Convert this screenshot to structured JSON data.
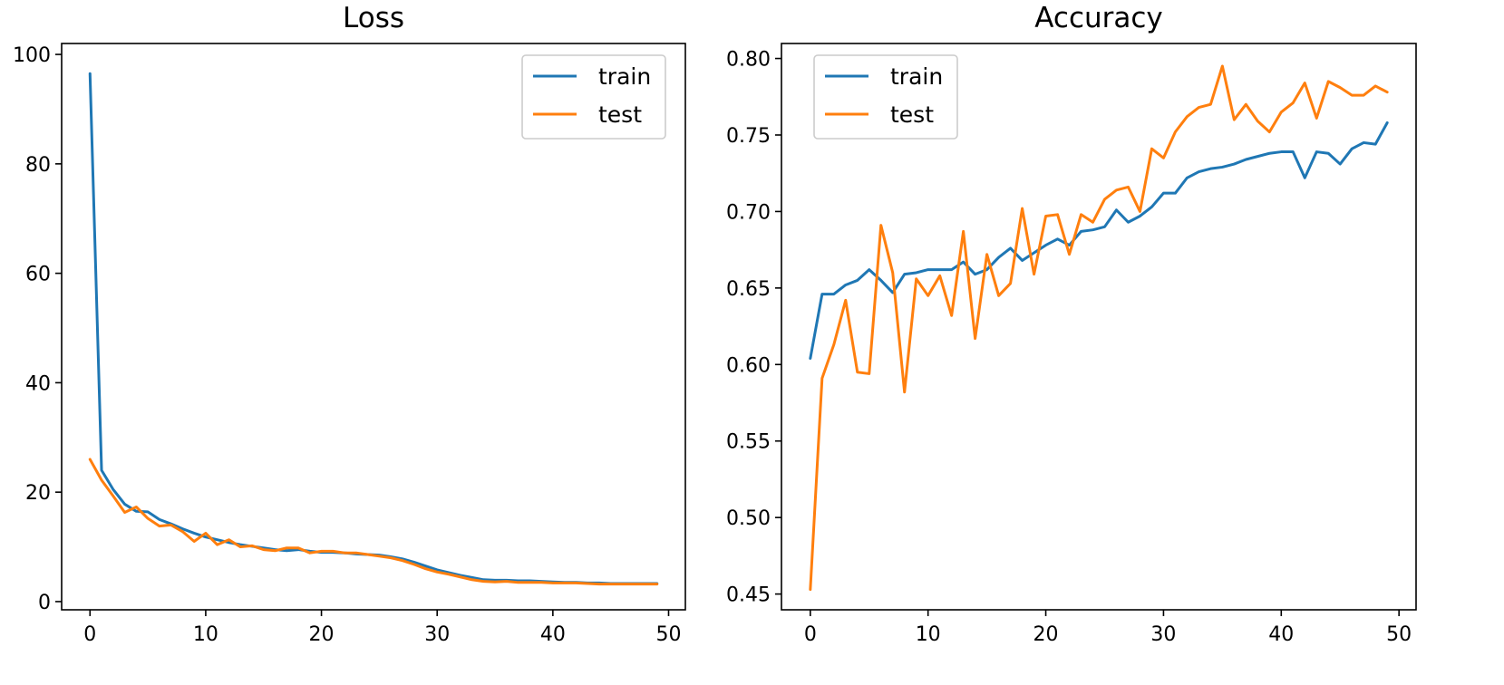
{
  "chart_data": [
    {
      "type": "line",
      "title": "Loss",
      "xlabel": "",
      "ylabel": "",
      "xlim": [
        -2.45,
        51.45
      ],
      "ylim": [
        -1.5,
        102
      ],
      "xticks": [
        0,
        10,
        20,
        30,
        40,
        50
      ],
      "yticks": [
        0,
        20,
        40,
        60,
        80,
        100
      ],
      "ytick_labels": [
        "0",
        "20",
        "40",
        "60",
        "80",
        "100"
      ],
      "legend_position": "upper right",
      "grid": false,
      "x": [
        0,
        1,
        2,
        3,
        4,
        5,
        6,
        7,
        8,
        9,
        10,
        11,
        12,
        13,
        14,
        15,
        16,
        17,
        18,
        19,
        20,
        21,
        22,
        23,
        24,
        25,
        26,
        27,
        28,
        29,
        30,
        31,
        32,
        33,
        34,
        35,
        36,
        37,
        38,
        39,
        40,
        41,
        42,
        43,
        44,
        45,
        46,
        47,
        48,
        49
      ],
      "series": [
        {
          "name": "train",
          "color": "#1f77b4",
          "values": [
            96.5,
            24.0,
            20.5,
            17.8,
            16.5,
            16.4,
            15.0,
            14.2,
            13.3,
            12.5,
            11.8,
            11.3,
            10.8,
            10.4,
            10.1,
            9.8,
            9.5,
            9.3,
            9.5,
            9.2,
            9.0,
            9.0,
            8.9,
            8.7,
            8.6,
            8.5,
            8.2,
            7.8,
            7.2,
            6.5,
            5.8,
            5.3,
            4.8,
            4.4,
            4.0,
            3.9,
            3.9,
            3.8,
            3.8,
            3.7,
            3.6,
            3.5,
            3.5,
            3.4,
            3.4,
            3.3,
            3.3,
            3.3,
            3.3,
            3.3
          ]
        },
        {
          "name": "test",
          "color": "#ff7f0e",
          "values": [
            26.0,
            22.2,
            19.3,
            16.3,
            17.3,
            15.2,
            13.8,
            14.0,
            12.8,
            11.0,
            12.5,
            10.4,
            11.3,
            10.0,
            10.2,
            9.5,
            9.3,
            9.8,
            9.8,
            8.9,
            9.2,
            9.2,
            8.9,
            8.9,
            8.6,
            8.3,
            8.0,
            7.5,
            6.8,
            6.0,
            5.4,
            5.0,
            4.5,
            4.0,
            3.7,
            3.6,
            3.7,
            3.5,
            3.5,
            3.5,
            3.4,
            3.4,
            3.4,
            3.3,
            3.2,
            3.2,
            3.2,
            3.2,
            3.2,
            3.2
          ]
        }
      ]
    },
    {
      "type": "line",
      "title": "Accuracy",
      "xlabel": "",
      "ylabel": "",
      "xlim": [
        -2.45,
        51.45
      ],
      "ylim": [
        0.4397,
        0.8098
      ],
      "xticks": [
        0,
        10,
        20,
        30,
        40,
        50
      ],
      "yticks": [
        0.45,
        0.5,
        0.55,
        0.6,
        0.65,
        0.7,
        0.75,
        0.8
      ],
      "ytick_labels": [
        "0.45",
        "0.50",
        "0.55",
        "0.60",
        "0.65",
        "0.70",
        "0.75",
        "0.80"
      ],
      "legend_position": "upper left",
      "grid": false,
      "x": [
        0,
        1,
        2,
        3,
        4,
        5,
        6,
        7,
        8,
        9,
        10,
        11,
        12,
        13,
        14,
        15,
        16,
        17,
        18,
        19,
        20,
        21,
        22,
        23,
        24,
        25,
        26,
        27,
        28,
        29,
        30,
        31,
        32,
        33,
        34,
        35,
        36,
        37,
        38,
        39,
        40,
        41,
        42,
        43,
        44,
        45,
        46,
        47,
        48,
        49
      ],
      "series": [
        {
          "name": "train",
          "color": "#1f77b4",
          "values": [
            0.604,
            0.646,
            0.646,
            0.652,
            0.655,
            0.662,
            0.655,
            0.647,
            0.659,
            0.66,
            0.662,
            0.662,
            0.662,
            0.667,
            0.659,
            0.662,
            0.67,
            0.676,
            0.668,
            0.673,
            0.678,
            0.682,
            0.678,
            0.687,
            0.688,
            0.69,
            0.701,
            0.693,
            0.697,
            0.703,
            0.712,
            0.712,
            0.722,
            0.726,
            0.728,
            0.729,
            0.731,
            0.734,
            0.736,
            0.738,
            0.739,
            0.739,
            0.722,
            0.739,
            0.738,
            0.731,
            0.741,
            0.745,
            0.744,
            0.758
          ]
        },
        {
          "name": "test",
          "color": "#ff7f0e",
          "values": [
            0.453,
            0.591,
            0.613,
            0.642,
            0.595,
            0.594,
            0.691,
            0.66,
            0.582,
            0.656,
            0.645,
            0.658,
            0.632,
            0.687,
            0.617,
            0.672,
            0.645,
            0.653,
            0.702,
            0.659,
            0.697,
            0.698,
            0.672,
            0.698,
            0.693,
            0.708,
            0.714,
            0.716,
            0.7,
            0.741,
            0.735,
            0.752,
            0.762,
            0.768,
            0.77,
            0.795,
            0.76,
            0.77,
            0.759,
            0.752,
            0.765,
            0.771,
            0.784,
            0.761,
            0.785,
            0.781,
            0.776,
            0.776,
            0.782,
            0.778
          ]
        }
      ]
    }
  ]
}
